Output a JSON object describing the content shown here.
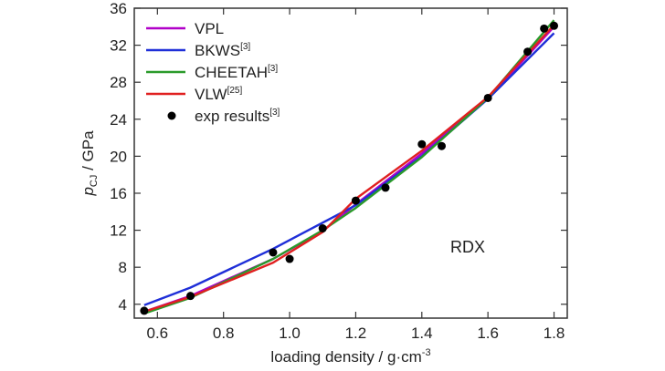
{
  "chart_data": {
    "type": "line",
    "title": "",
    "xlabel_main": "loading density / g·cm",
    "xlabel_sup": "-3",
    "ylabel_main": "p",
    "ylabel_sub": "CJ",
    "ylabel_rest": " / GPa",
    "xlim": [
      0.53,
      1.84
    ],
    "ylim": [
      2.5,
      36
    ],
    "xticks": [
      0.6,
      0.8,
      1.0,
      1.2,
      1.4,
      1.6,
      1.8
    ],
    "xtick_labels": [
      "0.6",
      "0.8",
      "1.0",
      "1.2",
      "1.4",
      "1.6",
      "1.8"
    ],
    "yticks": [
      4,
      8,
      12,
      16,
      20,
      24,
      28,
      32,
      36
    ],
    "ytick_labels": [
      "4",
      "8",
      "12",
      "16",
      "20",
      "24",
      "28",
      "32",
      "36"
    ],
    "annotation": "RDX",
    "legend_position": "top-left",
    "series": [
      {
        "name": "VPL",
        "sup": "",
        "color": "#b000c8",
        "x": [
          0.56,
          0.7,
          0.95,
          1.1,
          1.2,
          1.4,
          1.6,
          1.8
        ],
        "y": [
          3.2,
          4.9,
          8.9,
          11.9,
          14.8,
          20.3,
          26.2,
          34.0
        ]
      },
      {
        "name": "BKWS",
        "sup": "[3]",
        "color": "#1f2fd8",
        "x": [
          0.56,
          0.7,
          0.95,
          1.2,
          1.4,
          1.6,
          1.8
        ],
        "y": [
          3.9,
          5.8,
          10.0,
          14.7,
          20.0,
          26.2,
          33.3
        ]
      },
      {
        "name": "CHEETAH",
        "sup": "[3]",
        "color": "#2a9a2a",
        "x": [
          0.56,
          0.7,
          0.95,
          1.1,
          1.2,
          1.4,
          1.6,
          1.8
        ],
        "y": [
          3.0,
          4.7,
          8.9,
          12.0,
          14.4,
          19.9,
          26.3,
          34.7
        ]
      },
      {
        "name": "VLW",
        "sup": "[25]",
        "color": "#e02020",
        "x": [
          0.56,
          0.7,
          0.95,
          1.1,
          1.2,
          1.4,
          1.6,
          1.8
        ],
        "y": [
          3.2,
          4.8,
          8.5,
          11.8,
          15.4,
          20.6,
          26.4,
          34.2
        ]
      },
      {
        "name": "exp results",
        "sup": "[3]",
        "color": "#000000",
        "marker": "circle",
        "x": [
          0.56,
          0.7,
          0.95,
          1.0,
          1.1,
          1.2,
          1.29,
          1.4,
          1.46,
          1.6,
          1.72,
          1.77,
          1.8
        ],
        "y": [
          3.3,
          4.9,
          9.6,
          8.9,
          12.2,
          15.2,
          16.6,
          21.3,
          21.1,
          26.3,
          31.3,
          33.8,
          34.1
        ]
      }
    ]
  }
}
